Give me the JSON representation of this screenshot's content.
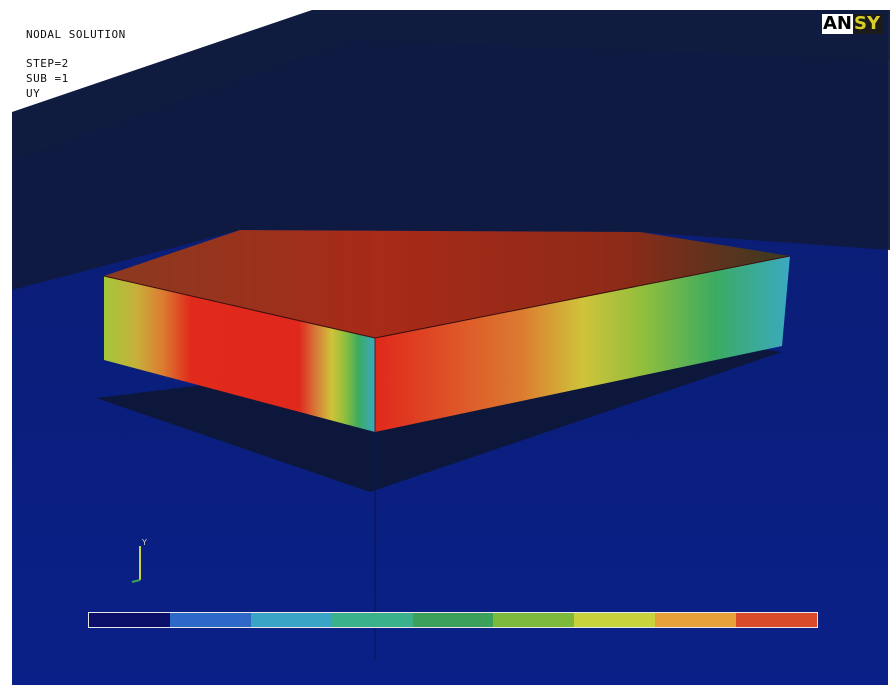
{
  "legend": {
    "line1": "NODAL SOLUTION",
    "line2": "STEP=2",
    "line3": "SUB =1",
    "line4": "UY"
  },
  "logo": {
    "left_part": "AN",
    "right_part": "SY"
  },
  "colors": {
    "background": "#0a1f7a",
    "top_wedge": "#101838",
    "colormap": [
      "#0b0f68",
      "#2f69c7",
      "#3aa4c6",
      "#3ab18a",
      "#3aa05a",
      "#7dba3c",
      "#c8d23a",
      "#e6a238",
      "#d94a2a"
    ],
    "block_top": "#b32a18",
    "block_front_center": "#e0281c",
    "block_side_low": "#3ba9c2"
  },
  "triad": {
    "axis_label": "Y"
  }
}
